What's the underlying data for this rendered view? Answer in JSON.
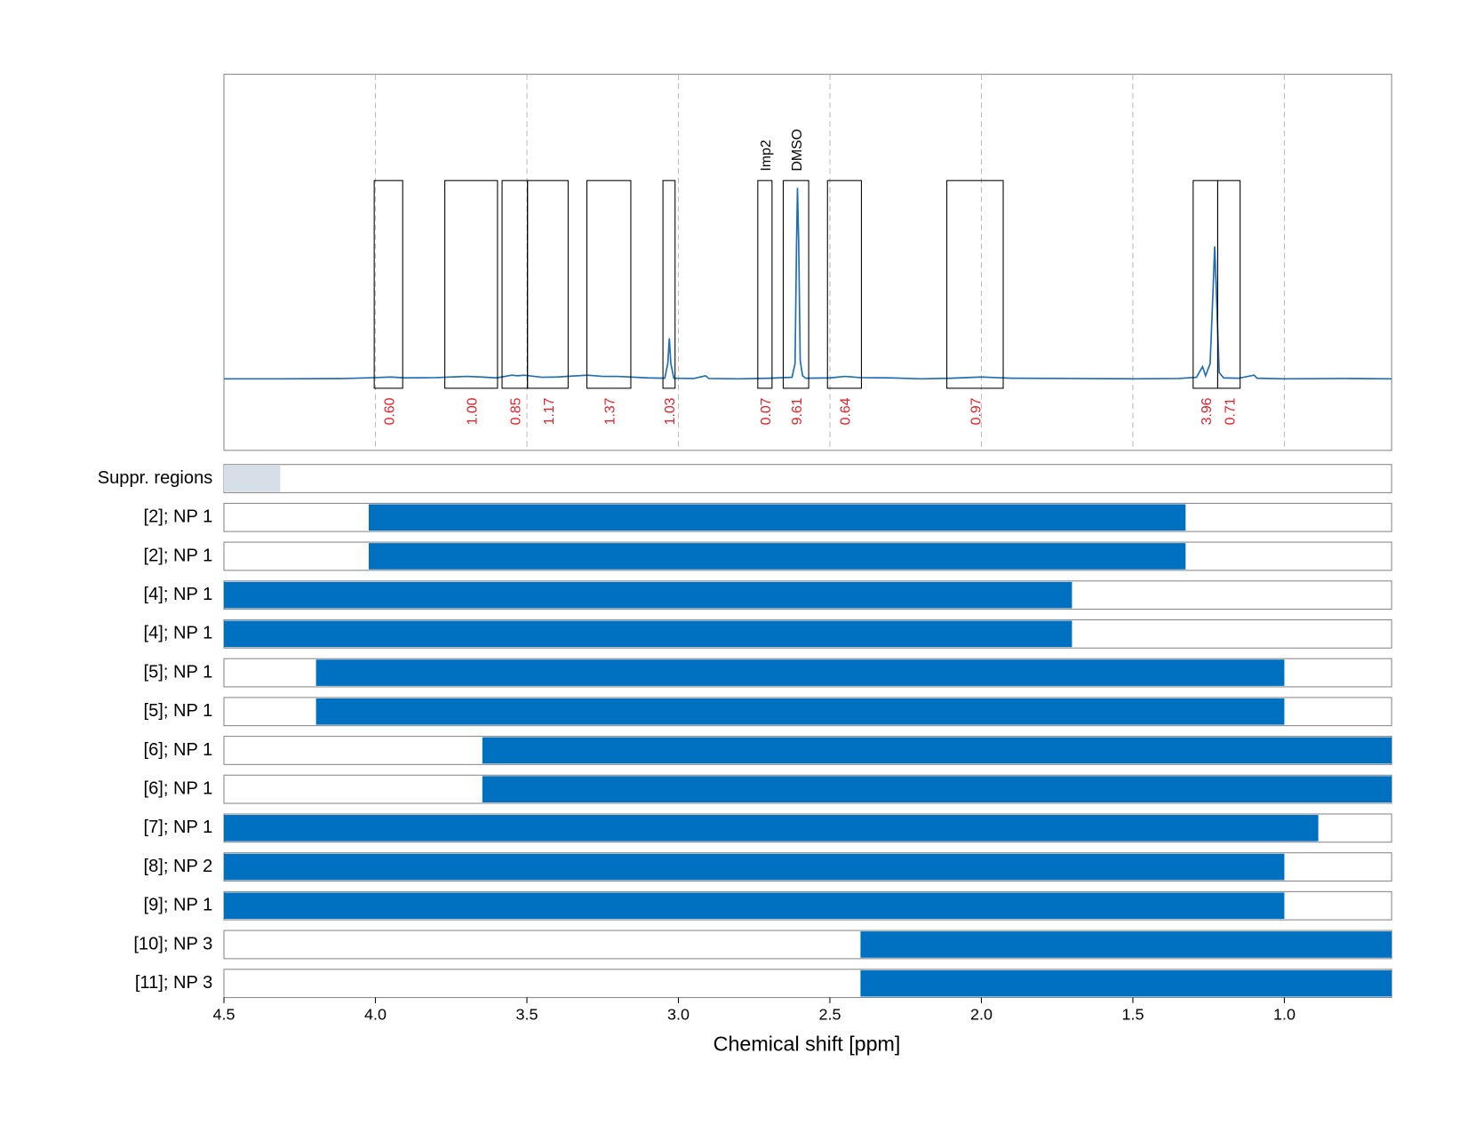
{
  "chart_data": [
    {
      "type": "spectrum",
      "color": "#1f6fb4",
      "xlim": [
        4.5,
        0.646
      ],
      "ylim": [
        -0.235,
        1
      ],
      "grid": true,
      "xticks": [
        4,
        3.5,
        3,
        2.5,
        2,
        1.5,
        1
      ],
      "x": [
        4.5,
        4.3,
        4.1,
        4.0,
        3.95,
        3.9,
        3.8,
        3.7,
        3.65,
        3.6,
        3.55,
        3.53,
        3.51,
        3.45,
        3.4,
        3.3,
        3.25,
        3.2,
        3.1,
        3.045,
        3.035,
        3.03,
        3.025,
        3.015,
        2.95,
        2.91,
        2.9,
        2.8,
        2.7,
        2.625,
        2.615,
        2.61,
        2.607,
        2.603,
        2.598,
        2.59,
        2.58,
        2.5,
        2.45,
        2.4,
        2.3,
        2.2,
        2.1,
        2.0,
        1.95,
        1.9,
        1.7,
        1.5,
        1.35,
        1.29,
        1.27,
        1.26,
        1.245,
        1.235,
        1.23,
        1.225,
        1.215,
        1.2,
        1.15,
        1.1,
        1.09,
        1.0,
        0.8,
        0.646
      ],
      "values": [
        0,
        0,
        0.001,
        0.004,
        0.006,
        0.003,
        0.004,
        0.008,
        0.006,
        0.003,
        0.012,
        0.01,
        0.012,
        0.005,
        0.006,
        0.012,
        0.008,
        0.008,
        0.003,
        0.002,
        0.05,
        0.133,
        0.05,
        0.002,
        0.001,
        0.01,
        0.001,
        0,
        0.002,
        0.005,
        0.05,
        0.45,
        0.627,
        0.45,
        0.06,
        0.01,
        0.002,
        0.003,
        0.008,
        0.004,
        0.003,
        0,
        0.002,
        0.006,
        0.004,
        0.002,
        0.001,
        0,
        0.001,
        0.005,
        0.04,
        0.01,
        0.05,
        0.3,
        0.435,
        0.3,
        0.02,
        0.003,
        0.002,
        0.012,
        0.002,
        0,
        0.001,
        0
      ],
      "regions": [
        {
          "x0": 4.004,
          "x1": 3.91,
          "integral": 0.6,
          "integral_label": "0.60"
        },
        {
          "x0": 3.771,
          "x1": 3.597,
          "integral": 1.0,
          "integral_label": "1.00"
        },
        {
          "x0": 3.582,
          "x1": 3.498,
          "integral": 0.85
        },
        {
          "x0": 3.498,
          "x1": 3.364,
          "integral": 1.17
        },
        {
          "x0": 3.302,
          "x1": 3.157,
          "integral": 1.37
        },
        {
          "x0": 3.051,
          "x1": 3.011,
          "integral": 1.03
        },
        {
          "x0": 2.738,
          "x1": 2.691,
          "integral": 0.07,
          "label": "Imp2"
        },
        {
          "x0": 2.654,
          "x1": 2.57,
          "integral": 9.61,
          "label": "DMSO"
        },
        {
          "x0": 2.508,
          "x1": 2.396,
          "integral": 0.64
        },
        {
          "x0": 2.114,
          "x1": 1.928,
          "integral": 0.97
        },
        {
          "x0": 1.301,
          "x1": 1.22,
          "integral": 3.96
        },
        {
          "x0": 1.22,
          "x1": 1.146,
          "integral": 0.71
        }
      ]
    },
    {
      "type": "range",
      "xlim": [
        4.5,
        0.646
      ],
      "x_label": "Chemical shift [ppm]",
      "xticks": [
        4.5,
        {
          "value": 4,
          "label": "4.0"
        },
        3.5,
        {
          "value": 3,
          "label": "3.0"
        },
        2.5,
        {
          "value": 2,
          "label": "2.0"
        },
        1.5,
        {
          "value": 1,
          "label": "1.0"
        }
      ],
      "rows": [
        {
          "label": "Suppr. regions",
          "start": 4.5,
          "end": 4.314,
          "color": "#d6dee7"
        },
        {
          "label": "[2]; NP 1",
          "start": 4.022,
          "end": 1.326,
          "color": "#0070c0"
        },
        {
          "label": "[2]; NP 1",
          "start": 4.022,
          "end": 1.326,
          "color": "#0070c0"
        },
        {
          "label": "[4]; NP 1",
          "start": 4.5,
          "end": 1.701,
          "color": "#0070c0"
        },
        {
          "label": "[4]; NP 1",
          "start": 4.5,
          "end": 1.701,
          "color": "#0070c0"
        },
        {
          "label": "[5]; NP 1",
          "start": 4.196,
          "end": 1.0,
          "color": "#0070c0"
        },
        {
          "label": "[5]; NP 1",
          "start": 4.196,
          "end": 1.0,
          "color": "#0070c0"
        },
        {
          "label": "[6]; NP 1",
          "start": 3.647,
          "end": 0.646,
          "color": "#0070c0"
        },
        {
          "label": "[6]; NP 1",
          "start": 3.647,
          "end": 0.646,
          "color": "#0070c0"
        },
        {
          "label": "[7]; NP 1",
          "start": 4.5,
          "end": 0.888,
          "color": "#0070c0"
        },
        {
          "label": "[8]; NP 2",
          "start": 4.5,
          "end": 1.0,
          "color": "#0070c0"
        },
        {
          "label": "[9]; NP 1",
          "start": 4.5,
          "end": 1.0,
          "color": "#0070c0"
        },
        {
          "label": "[10]; NP 3",
          "start": 2.399,
          "end": 0.646,
          "color": "#0070c0"
        },
        {
          "label": "[11]; NP 3",
          "start": 2.399,
          "end": 0.646,
          "color": "#0070c0"
        }
      ]
    }
  ]
}
